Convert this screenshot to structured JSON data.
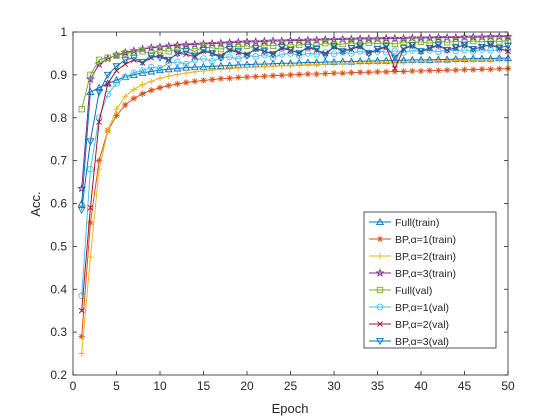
{
  "chart_data": {
    "type": "line",
    "xlabel": "Epoch",
    "ylabel": "Acc.",
    "xlim": [
      0,
      50
    ],
    "ylim": [
      0.2,
      1.0
    ],
    "xticks": [
      0,
      5,
      10,
      15,
      20,
      25,
      30,
      35,
      40,
      45,
      50
    ],
    "yticks": [
      0.2,
      0.3,
      0.4,
      0.5,
      0.6,
      0.7,
      0.8,
      0.9,
      1.0
    ],
    "xtick_labels": [
      "0",
      "5",
      "10",
      "15",
      "20",
      "25",
      "30",
      "35",
      "40",
      "45",
      "50"
    ],
    "ytick_labels": [
      "0.2",
      "0.3",
      "0.4",
      "0.5",
      "0.6",
      "0.7",
      "0.8",
      "0.9",
      "1"
    ],
    "grid": false,
    "legend_position": "bottom-right",
    "x": [
      1,
      2,
      3,
      4,
      5,
      6,
      7,
      8,
      9,
      10,
      11,
      12,
      13,
      14,
      15,
      16,
      17,
      18,
      19,
      20,
      21,
      22,
      23,
      24,
      25,
      26,
      27,
      28,
      29,
      30,
      31,
      32,
      33,
      34,
      35,
      36,
      37,
      38,
      39,
      40,
      41,
      42,
      43,
      44,
      45,
      46,
      47,
      48,
      49,
      50
    ],
    "series": [
      {
        "name": "Full(train)",
        "color": "#0072BD",
        "marker": "triangle-up",
        "values": [
          0.6,
          0.86,
          0.87,
          0.88,
          0.888,
          0.895,
          0.9,
          0.905,
          0.908,
          0.911,
          0.913,
          0.915,
          0.917,
          0.918,
          0.919,
          0.92,
          0.921,
          0.922,
          0.923,
          0.924,
          0.925,
          0.925,
          0.926,
          0.927,
          0.927,
          0.928,
          0.929,
          0.929,
          0.93,
          0.93,
          0.931,
          0.931,
          0.932,
          0.932,
          0.933,
          0.933,
          0.934,
          0.934,
          0.935,
          0.935,
          0.935,
          0.936,
          0.936,
          0.937,
          0.937,
          0.938,
          0.938,
          0.938,
          0.939,
          0.939
        ]
      },
      {
        "name": "BP,α=1(train)",
        "color": "#D95319",
        "marker": "asterisk",
        "values": [
          0.29,
          0.555,
          0.7,
          0.77,
          0.805,
          0.83,
          0.845,
          0.856,
          0.864,
          0.87,
          0.875,
          0.879,
          0.882,
          0.885,
          0.887,
          0.889,
          0.891,
          0.892,
          0.894,
          0.895,
          0.896,
          0.897,
          0.898,
          0.899,
          0.9,
          0.901,
          0.902,
          0.902,
          0.903,
          0.904,
          0.904,
          0.905,
          0.906,
          0.906,
          0.907,
          0.907,
          0.908,
          0.908,
          0.909,
          0.909,
          0.91,
          0.91,
          0.911,
          0.911,
          0.912,
          0.912,
          0.913,
          0.913,
          0.914,
          0.915
        ]
      },
      {
        "name": "BP,α=2(train)",
        "color": "#EDB120",
        "marker": "plus",
        "values": [
          0.25,
          0.475,
          0.68,
          0.77,
          0.82,
          0.85,
          0.866,
          0.877,
          0.885,
          0.892,
          0.897,
          0.901,
          0.904,
          0.907,
          0.909,
          0.911,
          0.913,
          0.914,
          0.916,
          0.917,
          0.918,
          0.919,
          0.92,
          0.921,
          0.922,
          0.923,
          0.924,
          0.924,
          0.925,
          0.926,
          0.926,
          0.927,
          0.928,
          0.928,
          0.929,
          0.929,
          0.93,
          0.93,
          0.931,
          0.931,
          0.932,
          0.932,
          0.933,
          0.933,
          0.934,
          0.934,
          0.935,
          0.935,
          0.936,
          0.936
        ]
      },
      {
        "name": "BP,α=3(train)",
        "color": "#7E2F8E",
        "marker": "pentagram",
        "values": [
          0.635,
          0.89,
          0.925,
          0.938,
          0.946,
          0.952,
          0.956,
          0.96,
          0.963,
          0.965,
          0.967,
          0.969,
          0.97,
          0.971,
          0.972,
          0.973,
          0.974,
          0.975,
          0.976,
          0.977,
          0.977,
          0.978,
          0.979,
          0.979,
          0.98,
          0.98,
          0.981,
          0.981,
          0.982,
          0.982,
          0.983,
          0.983,
          0.984,
          0.984,
          0.984,
          0.985,
          0.985,
          0.985,
          0.986,
          0.986,
          0.986,
          0.987,
          0.987,
          0.987,
          0.988,
          0.988,
          0.988,
          0.989,
          0.989,
          0.989
        ]
      },
      {
        "name": "Full(val)",
        "color": "#77AC30",
        "marker": "square",
        "values": [
          0.82,
          0.9,
          0.935,
          0.94,
          0.945,
          0.95,
          0.953,
          0.955,
          0.95,
          0.958,
          0.955,
          0.96,
          0.962,
          0.955,
          0.965,
          0.963,
          0.96,
          0.967,
          0.965,
          0.968,
          0.962,
          0.97,
          0.968,
          0.972,
          0.965,
          0.97,
          0.972,
          0.968,
          0.974,
          0.97,
          0.972,
          0.975,
          0.97,
          0.975,
          0.973,
          0.976,
          0.972,
          0.977,
          0.975,
          0.977,
          0.974,
          0.978,
          0.976,
          0.978,
          0.976,
          0.979,
          0.977,
          0.979,
          0.978,
          0.98
        ]
      },
      {
        "name": "BP,α=1(val)",
        "color": "#4DBEEE",
        "marker": "circle",
        "values": [
          0.385,
          0.68,
          0.8,
          0.855,
          0.88,
          0.895,
          0.905,
          0.91,
          0.918,
          0.915,
          0.928,
          0.93,
          0.925,
          0.935,
          0.938,
          0.932,
          0.94,
          0.942,
          0.937,
          0.945,
          0.943,
          0.947,
          0.94,
          0.948,
          0.95,
          0.945,
          0.95,
          0.948,
          0.952,
          0.949,
          0.953,
          0.95,
          0.955,
          0.951,
          0.955,
          0.953,
          0.956,
          0.952,
          0.957,
          0.955,
          0.957,
          0.954,
          0.958,
          0.956,
          0.958,
          0.955,
          0.959,
          0.957,
          0.959,
          0.958
        ]
      },
      {
        "name": "BP,α=2(val)",
        "color": "#A2142F",
        "marker": "cross",
        "values": [
          0.35,
          0.59,
          0.79,
          0.88,
          0.91,
          0.925,
          0.935,
          0.928,
          0.94,
          0.945,
          0.935,
          0.95,
          0.948,
          0.942,
          0.955,
          0.95,
          0.945,
          0.958,
          0.952,
          0.948,
          0.96,
          0.955,
          0.95,
          0.962,
          0.957,
          0.952,
          0.963,
          0.958,
          0.95,
          0.965,
          0.955,
          0.96,
          0.966,
          0.952,
          0.958,
          0.965,
          0.915,
          0.96,
          0.968,
          0.955,
          0.962,
          0.968,
          0.958,
          0.963,
          0.97,
          0.96,
          0.965,
          0.97,
          0.962,
          0.955
        ]
      },
      {
        "name": "BP,α=3(val)",
        "color": "#0072BD",
        "marker": "triangle-down",
        "values": [
          0.585,
          0.745,
          0.86,
          0.9,
          0.92,
          0.935,
          0.94,
          0.93,
          0.945,
          0.94,
          0.935,
          0.95,
          0.955,
          0.945,
          0.958,
          0.95,
          0.94,
          0.96,
          0.955,
          0.945,
          0.962,
          0.955,
          0.948,
          0.965,
          0.958,
          0.95,
          0.966,
          0.96,
          0.945,
          0.967,
          0.955,
          0.962,
          0.968,
          0.95,
          0.96,
          0.967,
          0.94,
          0.962,
          0.969,
          0.955,
          0.963,
          0.97,
          0.958,
          0.964,
          0.97,
          0.96,
          0.965,
          0.971,
          0.963,
          0.968
        ]
      }
    ]
  }
}
